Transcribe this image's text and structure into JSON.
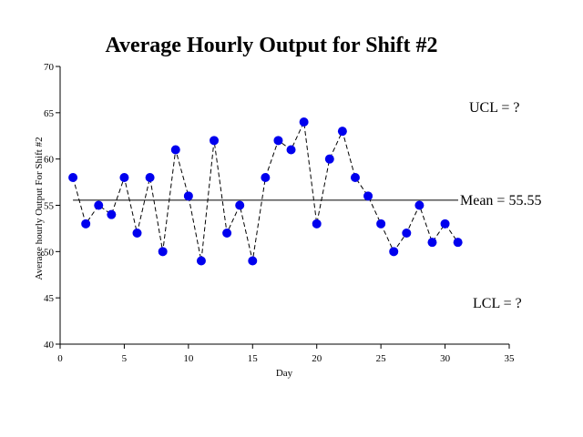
{
  "chart_data": {
    "type": "line",
    "title": "Average Hourly Output for Shift #2",
    "xlabel": "Day",
    "ylabel": "Average hourly Output For Shift #2",
    "xlim": [
      0,
      35
    ],
    "ylim": [
      40,
      70
    ],
    "xticks": [
      0,
      5,
      10,
      15,
      20,
      25,
      30,
      35
    ],
    "yticks": [
      40,
      45,
      50,
      55,
      60,
      65,
      70
    ],
    "x": [
      1,
      2,
      3,
      4,
      5,
      6,
      7,
      8,
      9,
      10,
      11,
      12,
      13,
      14,
      15,
      16,
      17,
      18,
      19,
      20,
      21,
      22,
      23,
      24,
      25,
      26,
      27,
      28,
      29,
      30,
      31
    ],
    "series": [
      {
        "values": [
          58,
          53,
          55,
          54,
          58,
          52,
          58,
          50,
          61,
          56,
          49,
          62,
          52,
          55,
          49,
          58,
          62,
          61,
          64,
          53,
          60,
          63,
          58,
          56,
          53,
          50,
          52,
          55,
          51,
          53,
          51
        ],
        "color": "#0000ee",
        "line_style": "dashed"
      }
    ],
    "mean_line": {
      "value": 55.55,
      "x_range": [
        1,
        31
      ]
    },
    "annotations": {
      "mean": "Mean = 55.55",
      "ucl": "UCL = ?",
      "lcl": "LCL = ?"
    },
    "grid": false,
    "legend": "none"
  }
}
